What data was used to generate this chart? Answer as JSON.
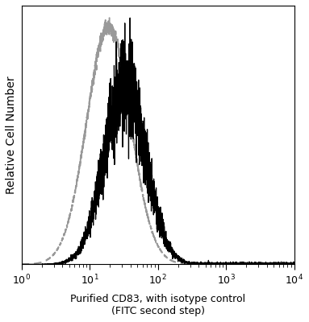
{
  "ylabel": "Relative Cell Number",
  "xlabel_combined": "Purified CD83, with isotype control\n(FITC second step)",
  "xmin": 1,
  "xmax": 10000,
  "ymin": 0,
  "ymax": 1.05,
  "background_color": "#ffffff",
  "solid_color": "#000000",
  "dashed_color": "#999999",
  "solid_lw": 0.9,
  "dashed_lw": 1.4,
  "mu_iso": 1.28,
  "sig_iso": 0.32,
  "mu_cd": 1.52,
  "sig_cd": 0.3,
  "noise_seed": 42
}
